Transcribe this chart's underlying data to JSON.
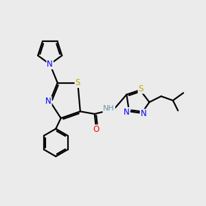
{
  "bg_color": "#ebebeb",
  "bond_color": "#000000",
  "atom_colors": {
    "N": "#0000ff",
    "S": "#bbaa00",
    "O": "#ff0000",
    "H": "#6699aa",
    "C": "#000000"
  },
  "lw": 1.6,
  "fontsize": 8.5
}
